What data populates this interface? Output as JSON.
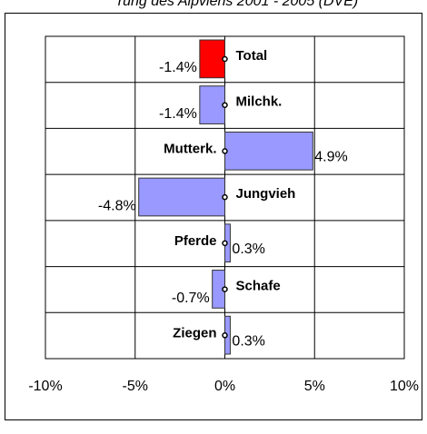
{
  "chart_data": {
    "type": "barh",
    "title": "rung des Alpviehs 2001 - 2005 (DVE)",
    "categories": [
      "Total",
      "Milchk.",
      "Mutterk.",
      "Jungvieh",
      "Pferde",
      "Schafe",
      "Ziegen"
    ],
    "values": [
      -1.4,
      -1.4,
      4.9,
      -4.8,
      0.3,
      -0.7,
      0.3
    ],
    "value_labels": [
      "-1.4%",
      "-1.4%",
      "4.9%",
      "-4.8%",
      "0.3%",
      "-0.7%",
      "0.3%"
    ],
    "colors": [
      "#ff0000",
      "#9999ff",
      "#9999ff",
      "#9999ff",
      "#9999ff",
      "#9999ff",
      "#9999ff"
    ],
    "xlim": [
      -10,
      10
    ],
    "xticks": [
      {
        "value": -10,
        "label": "-10%"
      },
      {
        "value": -5,
        "label": "-5%"
      },
      {
        "value": 0,
        "label": "0%"
      },
      {
        "value": 5,
        "label": "5%"
      },
      {
        "value": 10,
        "label": "10%"
      }
    ],
    "grid": true
  }
}
